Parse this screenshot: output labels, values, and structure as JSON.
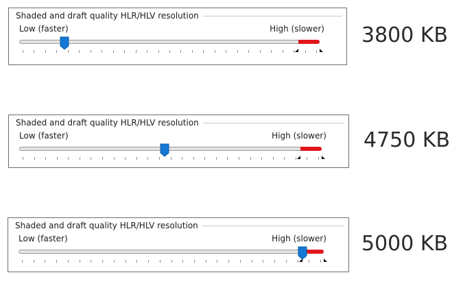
{
  "panels": [
    {
      "title": "Shaded and draft quality HLR/HLV resolution",
      "low_label": "Low (faster)",
      "high_label": "High (slower)",
      "slider_fraction": 0.15,
      "red_range_start_fraction": 0.93,
      "size": "3800 KB"
    },
    {
      "title": "Shaded and draft quality HLR/HLV resolution",
      "low_label": "Low (faster)",
      "high_label": "High (slower)",
      "slider_fraction": 0.48,
      "red_range_start_fraction": 0.93,
      "size": "4750 KB"
    },
    {
      "title": "Shaded and draft quality HLR/HLV resolution",
      "low_label": "Low (faster)",
      "high_label": "High (slower)",
      "slider_fraction": 0.93,
      "red_range_start_fraction": 0.93,
      "size": "5000 KB"
    }
  ],
  "colors": {
    "thumb": "#1478d4",
    "red_range": "#e0161c",
    "border": "#6e6e6e"
  },
  "icons": {
    "thumb": "slider-thumb-pointer-down",
    "range_markers": "triangle-marker"
  }
}
